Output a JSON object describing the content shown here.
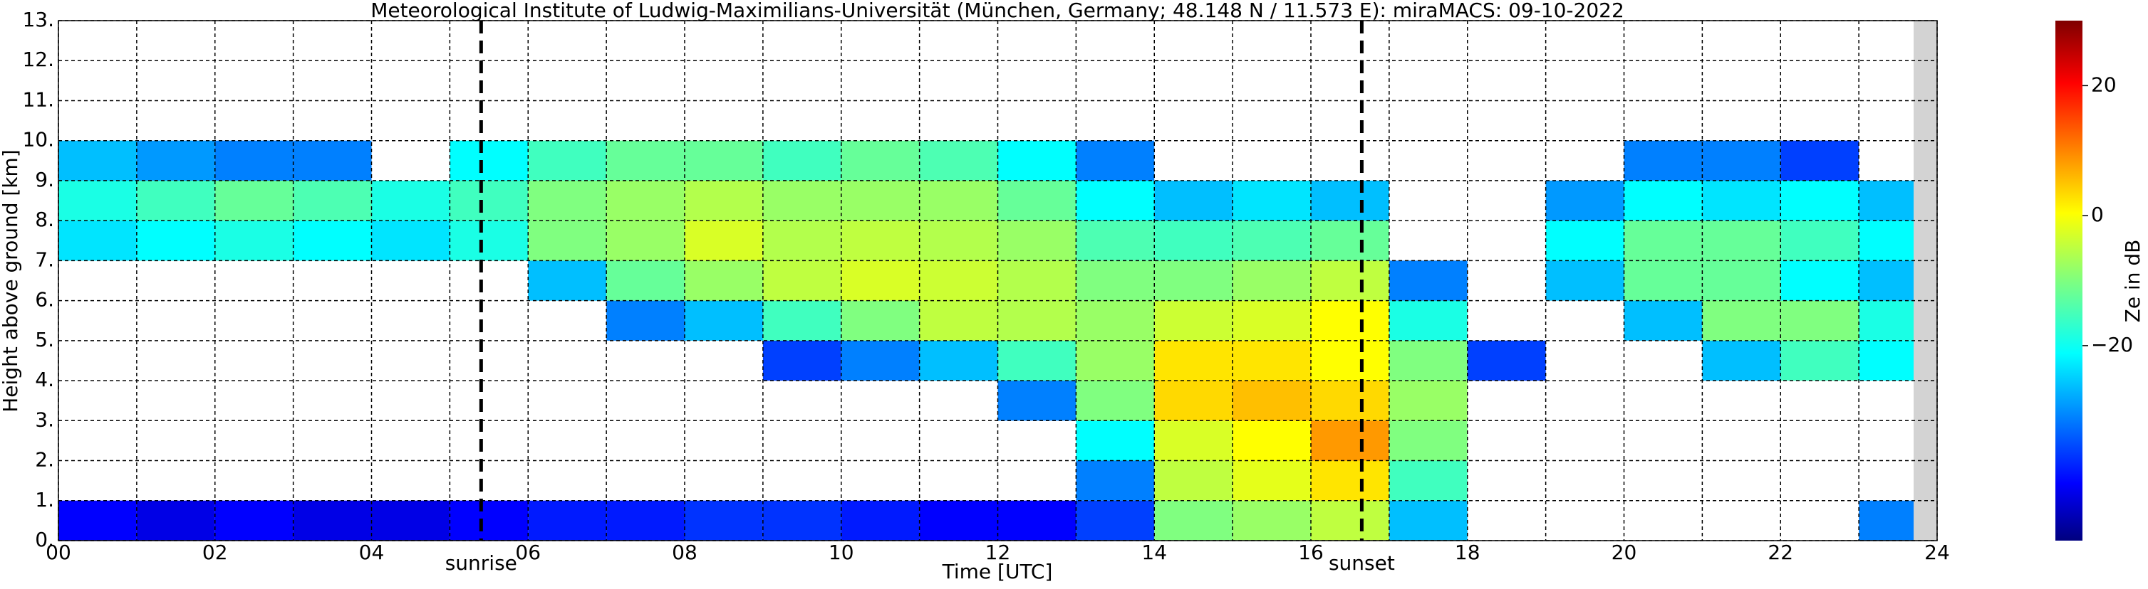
{
  "chart_data": {
    "type": "heatmap",
    "title": "Meteorological Institute of Ludwig-Maximilians-Universität (München, Germany; 48.148 N / 11.573 E):    miraMACS: 09-10-2022",
    "x_label": "Time [UTC]",
    "y_label": "Height above ground [km]",
    "colorbar_label": "Ze in dB",
    "xlim": [
      0,
      24
    ],
    "ylim": [
      0,
      13
    ],
    "xticks": [
      {
        "value": 0,
        "label": "00"
      },
      {
        "value": 2,
        "label": "02"
      },
      {
        "value": 4,
        "label": "04"
      },
      {
        "value": 6,
        "label": "06"
      },
      {
        "value": 8,
        "label": "08"
      },
      {
        "value": 10,
        "label": "10"
      },
      {
        "value": 12,
        "label": "12"
      },
      {
        "value": 14,
        "label": "14"
      },
      {
        "value": 16,
        "label": "16"
      },
      {
        "value": 18,
        "label": "18"
      },
      {
        "value": 20,
        "label": "20"
      },
      {
        "value": 22,
        "label": "22"
      },
      {
        "value": 24,
        "label": "24"
      }
    ],
    "x_minor_ticks": [
      1,
      3,
      5,
      7,
      9,
      11,
      13,
      15,
      17,
      19,
      21,
      23
    ],
    "yticks": [
      {
        "value": 0,
        "label": "0."
      },
      {
        "value": 1,
        "label": "1."
      },
      {
        "value": 2,
        "label": "2."
      },
      {
        "value": 3,
        "label": "3."
      },
      {
        "value": 4,
        "label": "4."
      },
      {
        "value": 5,
        "label": "5."
      },
      {
        "value": 6,
        "label": "6."
      },
      {
        "value": 7,
        "label": "7."
      },
      {
        "value": 8,
        "label": "8."
      },
      {
        "value": 9,
        "label": "9."
      },
      {
        "value": 10,
        "label": "10."
      },
      {
        "value": 11,
        "label": "11."
      },
      {
        "value": 12,
        "label": "12."
      },
      {
        "value": 13,
        "label": "13."
      }
    ],
    "grid": true,
    "colormap": "jet",
    "clim": [
      -50,
      30
    ],
    "cticks": [
      {
        "value": 20,
        "label": "20"
      },
      {
        "value": 0,
        "label": "0"
      },
      {
        "value": -20,
        "label": "−20"
      }
    ],
    "no_data_from": 23.7,
    "no_data_color": "#d3d3d3",
    "annotations": [
      {
        "text": "sunrise",
        "x": 5.4
      },
      {
        "text": "sunset",
        "x": 16.65
      }
    ],
    "x": [
      0,
      1,
      2,
      3,
      4,
      5,
      6,
      7,
      8,
      9,
      10,
      11,
      12,
      13,
      14,
      15,
      16,
      17,
      18,
      19,
      20,
      21,
      22,
      23
    ],
    "y": [
      0,
      1,
      2,
      3,
      4,
      5,
      6,
      7,
      8,
      9,
      10,
      11,
      12
    ],
    "values": [
      [
        -40,
        -42,
        -40,
        -42,
        -42,
        -40,
        -38,
        -38,
        -36,
        -36,
        -38,
        -40,
        -40,
        -35,
        -10,
        -8,
        -5,
        -25,
        null,
        null,
        null,
        null,
        null,
        -30
      ],
      [
        null,
        null,
        null,
        null,
        null,
        null,
        null,
        null,
        null,
        null,
        null,
        null,
        null,
        -30,
        -5,
        -2,
        2,
        -15,
        null,
        null,
        null,
        null,
        null,
        null
      ],
      [
        null,
        null,
        null,
        null,
        null,
        null,
        null,
        null,
        null,
        null,
        null,
        null,
        null,
        -20,
        -3,
        0,
        8,
        -10,
        null,
        null,
        null,
        null,
        null,
        null
      ],
      [
        null,
        null,
        null,
        null,
        null,
        null,
        null,
        null,
        null,
        null,
        null,
        null,
        -30,
        -10,
        3,
        5,
        3,
        -8,
        null,
        null,
        null,
        null,
        null,
        null
      ],
      [
        null,
        null,
        null,
        null,
        null,
        null,
        null,
        null,
        null,
        -35,
        -30,
        -25,
        -15,
        -8,
        2,
        2,
        0,
        -10,
        -35,
        null,
        null,
        -25,
        -15,
        -20
      ],
      [
        null,
        null,
        null,
        null,
        null,
        null,
        null,
        -30,
        -25,
        -15,
        -10,
        -5,
        -6,
        -8,
        -4,
        -3,
        0,
        -18,
        null,
        null,
        -25,
        -10,
        -10,
        -18
      ],
      [
        null,
        null,
        null,
        null,
        null,
        null,
        -25,
        -12,
        -8,
        -5,
        -3,
        -4,
        -6,
        -10,
        -10,
        -8,
        -5,
        -30,
        null,
        -25,
        -12,
        -12,
        -20,
        -25
      ],
      [
        -22,
        -20,
        -18,
        -20,
        -22,
        -18,
        -10,
        -8,
        -3,
        -6,
        -5,
        -6,
        -8,
        -14,
        -15,
        -14,
        -12,
        null,
        null,
        -20,
        -12,
        -12,
        -15,
        -20
      ],
      [
        -18,
        -15,
        -12,
        -14,
        -18,
        -15,
        -10,
        -8,
        -6,
        -8,
        -8,
        -8,
        -12,
        -20,
        -25,
        -22,
        -25,
        null,
        null,
        -28,
        -20,
        -22,
        -20,
        -25
      ],
      [
        -25,
        -28,
        -30,
        -30,
        null,
        -20,
        -15,
        -12,
        -12,
        -15,
        -12,
        -14,
        -20,
        -30,
        null,
        null,
        null,
        null,
        null,
        null,
        -30,
        -30,
        -35,
        null
      ],
      [
        null,
        null,
        null,
        null,
        null,
        null,
        null,
        null,
        null,
        null,
        null,
        null,
        null,
        null,
        null,
        null,
        null,
        null,
        null,
        null,
        null,
        null,
        null,
        null
      ],
      [
        null,
        null,
        null,
        null,
        null,
        null,
        null,
        null,
        null,
        null,
        null,
        null,
        null,
        null,
        null,
        null,
        null,
        null,
        null,
        null,
        null,
        null,
        null,
        null
      ],
      [
        null,
        null,
        null,
        null,
        null,
        null,
        null,
        null,
        null,
        null,
        null,
        null,
        null,
        null,
        null,
        null,
        null,
        null,
        null,
        null,
        null,
        null,
        null,
        null
      ]
    ]
  }
}
